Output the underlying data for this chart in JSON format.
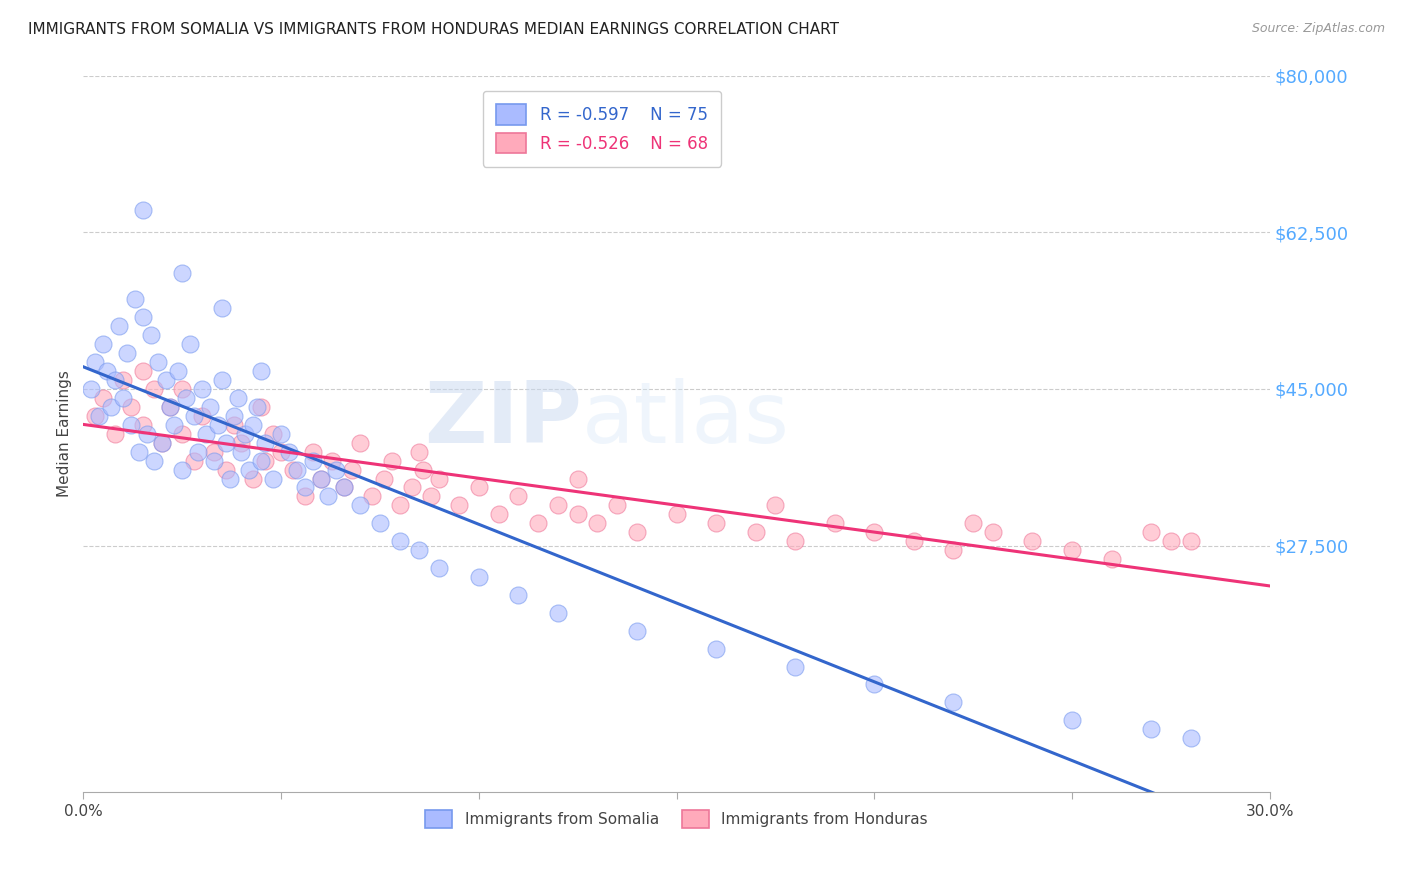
{
  "title": "IMMIGRANTS FROM SOMALIA VS IMMIGRANTS FROM HONDURAS MEDIAN EARNINGS CORRELATION CHART",
  "source": "Source: ZipAtlas.com",
  "ylabel_label": "Median Earnings",
  "x_min": 0.0,
  "x_max": 0.3,
  "y_min": 0,
  "y_max": 80000,
  "y_ticks": [
    0,
    27500,
    45000,
    62500,
    80000
  ],
  "x_ticks": [
    0.0,
    0.05,
    0.1,
    0.15,
    0.2,
    0.25,
    0.3
  ],
  "somalia_color": "#aabbff",
  "somalia_edge": "#7799ee",
  "honduras_color": "#ffaabb",
  "honduras_edge": "#ee7799",
  "somalia_line_color": "#3366cc",
  "honduras_line_color": "#ee3377",
  "R_somalia": -0.597,
  "N_somalia": 75,
  "R_honduras": -0.526,
  "N_honduras": 68,
  "background_color": "#ffffff",
  "title_fontsize": 11,
  "source_fontsize": 9,
  "somalia_x": [
    0.002,
    0.003,
    0.004,
    0.005,
    0.006,
    0.007,
    0.008,
    0.009,
    0.01,
    0.011,
    0.012,
    0.013,
    0.014,
    0.015,
    0.016,
    0.017,
    0.018,
    0.019,
    0.02,
    0.021,
    0.022,
    0.023,
    0.024,
    0.025,
    0.026,
    0.027,
    0.028,
    0.029,
    0.03,
    0.031,
    0.032,
    0.033,
    0.034,
    0.035,
    0.036,
    0.037,
    0.038,
    0.039,
    0.04,
    0.041,
    0.042,
    0.043,
    0.044,
    0.045,
    0.046,
    0.048,
    0.05,
    0.052,
    0.054,
    0.056,
    0.058,
    0.06,
    0.062,
    0.064,
    0.066,
    0.07,
    0.075,
    0.08,
    0.085,
    0.09,
    0.1,
    0.11,
    0.12,
    0.14,
    0.16,
    0.18,
    0.2,
    0.22,
    0.25,
    0.27,
    0.015,
    0.025,
    0.035,
    0.045,
    0.28
  ],
  "somalia_y": [
    45000,
    48000,
    42000,
    50000,
    47000,
    43000,
    46000,
    52000,
    44000,
    49000,
    41000,
    55000,
    38000,
    53000,
    40000,
    51000,
    37000,
    48000,
    39000,
    46000,
    43000,
    41000,
    47000,
    36000,
    44000,
    50000,
    42000,
    38000,
    45000,
    40000,
    43000,
    37000,
    41000,
    46000,
    39000,
    35000,
    42000,
    44000,
    38000,
    40000,
    36000,
    41000,
    43000,
    37000,
    39000,
    35000,
    40000,
    38000,
    36000,
    34000,
    37000,
    35000,
    33000,
    36000,
    34000,
    32000,
    30000,
    28000,
    27000,
    25000,
    24000,
    22000,
    20000,
    18000,
    16000,
    14000,
    12000,
    10000,
    8000,
    7000,
    65000,
    58000,
    54000,
    47000,
    6000
  ],
  "honduras_x": [
    0.003,
    0.005,
    0.008,
    0.01,
    0.012,
    0.015,
    0.018,
    0.02,
    0.022,
    0.025,
    0.028,
    0.03,
    0.033,
    0.036,
    0.038,
    0.04,
    0.043,
    0.046,
    0.048,
    0.05,
    0.053,
    0.056,
    0.058,
    0.06,
    0.063,
    0.066,
    0.068,
    0.07,
    0.073,
    0.076,
    0.078,
    0.08,
    0.083,
    0.086,
    0.088,
    0.09,
    0.095,
    0.1,
    0.105,
    0.11,
    0.115,
    0.12,
    0.125,
    0.13,
    0.135,
    0.14,
    0.15,
    0.16,
    0.17,
    0.18,
    0.19,
    0.2,
    0.21,
    0.22,
    0.23,
    0.24,
    0.25,
    0.26,
    0.27,
    0.28,
    0.015,
    0.025,
    0.045,
    0.085,
    0.125,
    0.175,
    0.225,
    0.275
  ],
  "honduras_y": [
    42000,
    44000,
    40000,
    46000,
    43000,
    41000,
    45000,
    39000,
    43000,
    40000,
    37000,
    42000,
    38000,
    36000,
    41000,
    39000,
    35000,
    37000,
    40000,
    38000,
    36000,
    33000,
    38000,
    35000,
    37000,
    34000,
    36000,
    39000,
    33000,
    35000,
    37000,
    32000,
    34000,
    36000,
    33000,
    35000,
    32000,
    34000,
    31000,
    33000,
    30000,
    32000,
    31000,
    30000,
    32000,
    29000,
    31000,
    30000,
    29000,
    28000,
    30000,
    29000,
    28000,
    27000,
    29000,
    28000,
    27000,
    26000,
    29000,
    28000,
    47000,
    45000,
    43000,
    38000,
    35000,
    32000,
    30000,
    28000
  ]
}
